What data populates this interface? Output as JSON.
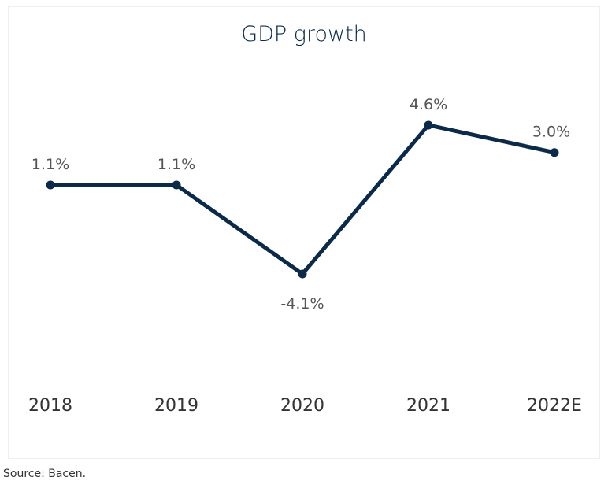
{
  "chart_data": {
    "type": "line",
    "title": "GDP growth",
    "categories": [
      "2018",
      "2019",
      "2020",
      "2021",
      "2022E"
    ],
    "values": [
      1.1,
      1.1,
      -4.1,
      4.6,
      3.0
    ],
    "data_labels": [
      "1.1%",
      "1.1%",
      "-4.1%",
      "4.6%",
      "3.0%"
    ],
    "xlabel": "",
    "ylabel": "",
    "grid": false,
    "legend": "none",
    "line_color": "#0b2a4a",
    "label_color": "#555555"
  },
  "footer": {
    "source": "Source: Bacen."
  }
}
